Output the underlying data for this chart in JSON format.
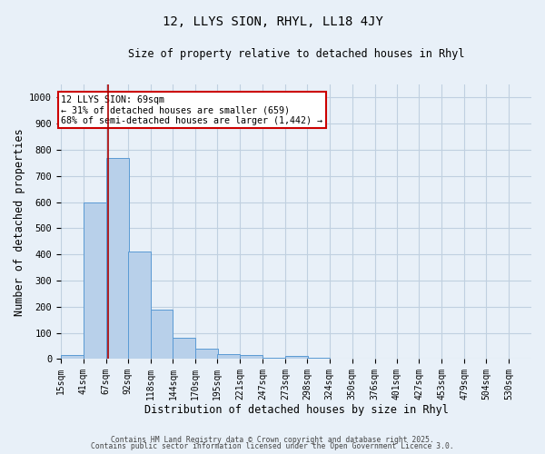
{
  "title_line1": "12, LLYS SION, RHYL, LL18 4JY",
  "title_line2": "Size of property relative to detached houses in Rhyl",
  "xlabel": "Distribution of detached houses by size in Rhyl",
  "ylabel": "Number of detached properties",
  "bin_labels": [
    "15sqm",
    "41sqm",
    "67sqm",
    "92sqm",
    "118sqm",
    "144sqm",
    "170sqm",
    "195sqm",
    "221sqm",
    "247sqm",
    "273sqm",
    "298sqm",
    "324sqm",
    "350sqm",
    "376sqm",
    "401sqm",
    "427sqm",
    "453sqm",
    "479sqm",
    "504sqm",
    "530sqm"
  ],
  "bin_left_edges": [
    15,
    41,
    67,
    92,
    118,
    144,
    170,
    195,
    221,
    247,
    273,
    298,
    324,
    350,
    376,
    401,
    427,
    453,
    479,
    504,
    530
  ],
  "values": [
    15,
    600,
    770,
    410,
    190,
    80,
    38,
    20,
    15,
    5,
    10,
    5,
    0,
    0,
    0,
    0,
    0,
    0,
    0,
    0,
    0
  ],
  "bar_facecolor": "#b8d0ea",
  "bar_edgecolor": "#5a9ad4",
  "bar_linewidth": 0.7,
  "grid_color": "#c0d0e0",
  "background_color": "#e8f0f8",
  "ylim": [
    0,
    1050
  ],
  "yticks": [
    0,
    100,
    200,
    300,
    400,
    500,
    600,
    700,
    800,
    900,
    1000
  ],
  "property_size": 69,
  "red_line_color": "#aa0000",
  "annotation_line1": "12 LLYS SION: 69sqm",
  "annotation_line2": "← 31% of detached houses are smaller (659)",
  "annotation_line3": "68% of semi-detached houses are larger (1,442) →",
  "annotation_box_edgecolor": "#cc0000",
  "annotation_box_facecolor": "#ffffff",
  "footnote1": "Contains HM Land Registry data © Crown copyright and database right 2025.",
  "footnote2": "Contains public sector information licensed under the Open Government Licence 3.0."
}
